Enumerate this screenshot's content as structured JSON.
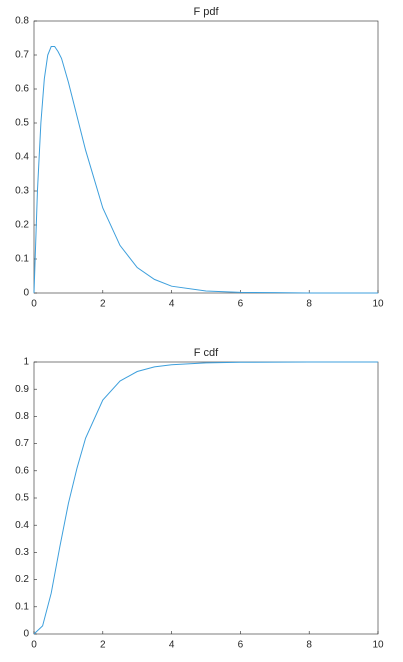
{
  "chart_data": [
    {
      "type": "line",
      "title": "F pdf",
      "x": [
        0,
        0.1,
        0.2,
        0.3,
        0.4,
        0.5,
        0.6,
        0.7,
        0.8,
        1.0,
        1.2,
        1.5,
        2,
        2.5,
        3,
        3.5,
        4,
        5,
        6,
        7,
        8,
        10
      ],
      "series": [
        {
          "color": "#3d9fdc",
          "values": [
            0,
            0.3,
            0.5,
            0.63,
            0.7,
            0.725,
            0.725,
            0.71,
            0.69,
            0.62,
            0.54,
            0.42,
            0.25,
            0.14,
            0.075,
            0.04,
            0.02,
            0.006,
            0.002,
            0.001,
            0,
            0
          ]
        }
      ],
      "xlim": [
        0,
        10
      ],
      "xticks": [
        0,
        2,
        4,
        6,
        8,
        10
      ],
      "ylim": [
        0,
        0.8
      ],
      "yticks": [
        0,
        0.1,
        0.2,
        0.3,
        0.4,
        0.5,
        0.6,
        0.7,
        0.8
      ]
    },
    {
      "type": "line",
      "title": "F cdf",
      "x": [
        0,
        0.25,
        0.5,
        0.75,
        1,
        1.25,
        1.5,
        2,
        2.5,
        3,
        3.5,
        4,
        5,
        6,
        8,
        10
      ],
      "series": [
        {
          "color": "#3d9fdc",
          "values": [
            0,
            0.03,
            0.15,
            0.32,
            0.48,
            0.61,
            0.72,
            0.86,
            0.93,
            0.965,
            0.982,
            0.99,
            0.997,
            0.999,
            1,
            1
          ]
        }
      ],
      "xlim": [
        0,
        10
      ],
      "xticks": [
        0,
        2,
        4,
        6,
        8,
        10
      ],
      "ylim": [
        0,
        1
      ],
      "yticks": [
        0,
        0.1,
        0.2,
        0.3,
        0.4,
        0.5,
        0.6,
        0.7,
        0.8,
        0.9,
        1
      ]
    }
  ]
}
